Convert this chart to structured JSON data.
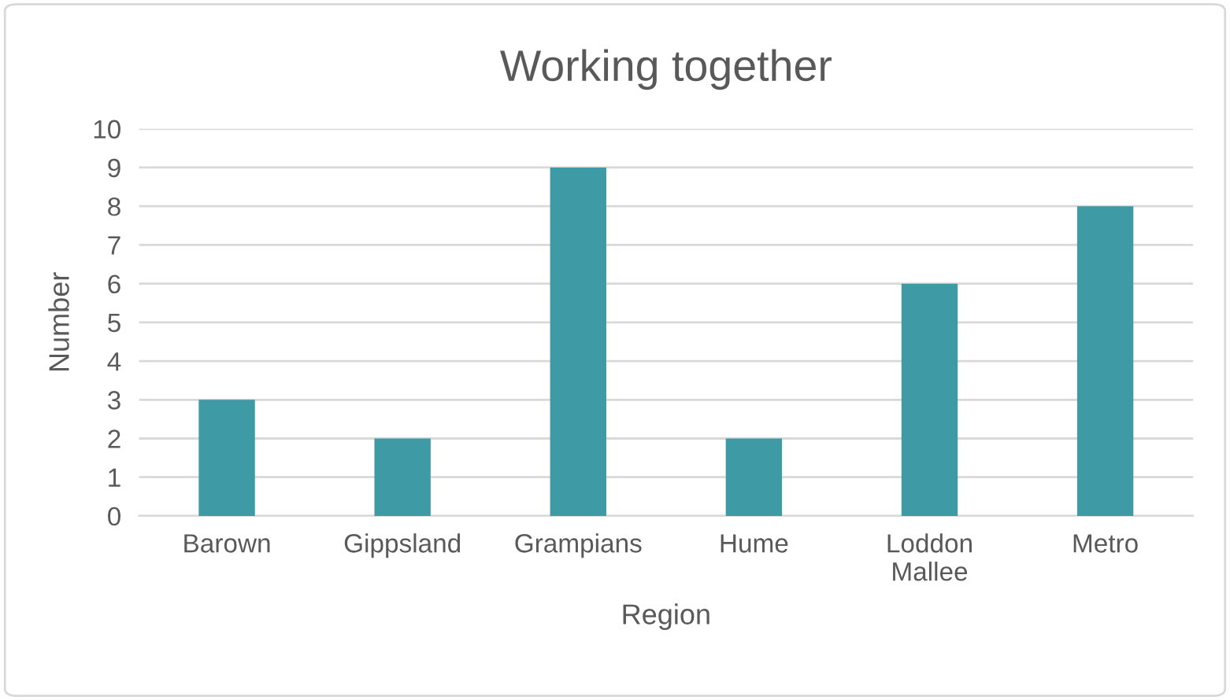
{
  "chart_data": {
    "type": "bar",
    "title": "Working together",
    "xlabel": "Region",
    "ylabel": "Number",
    "categories": [
      "Barown",
      "Gippsland",
      "Grampians",
      "Hume",
      "Loddon\nMallee",
      "Metro"
    ],
    "values": [
      3,
      2,
      9,
      2,
      6,
      8
    ],
    "color": "#3e9aa5",
    "ylim": [
      0,
      10
    ],
    "yticks": [
      0,
      1,
      2,
      3,
      4,
      5,
      6,
      7,
      8,
      9,
      10
    ],
    "grid": "y"
  }
}
